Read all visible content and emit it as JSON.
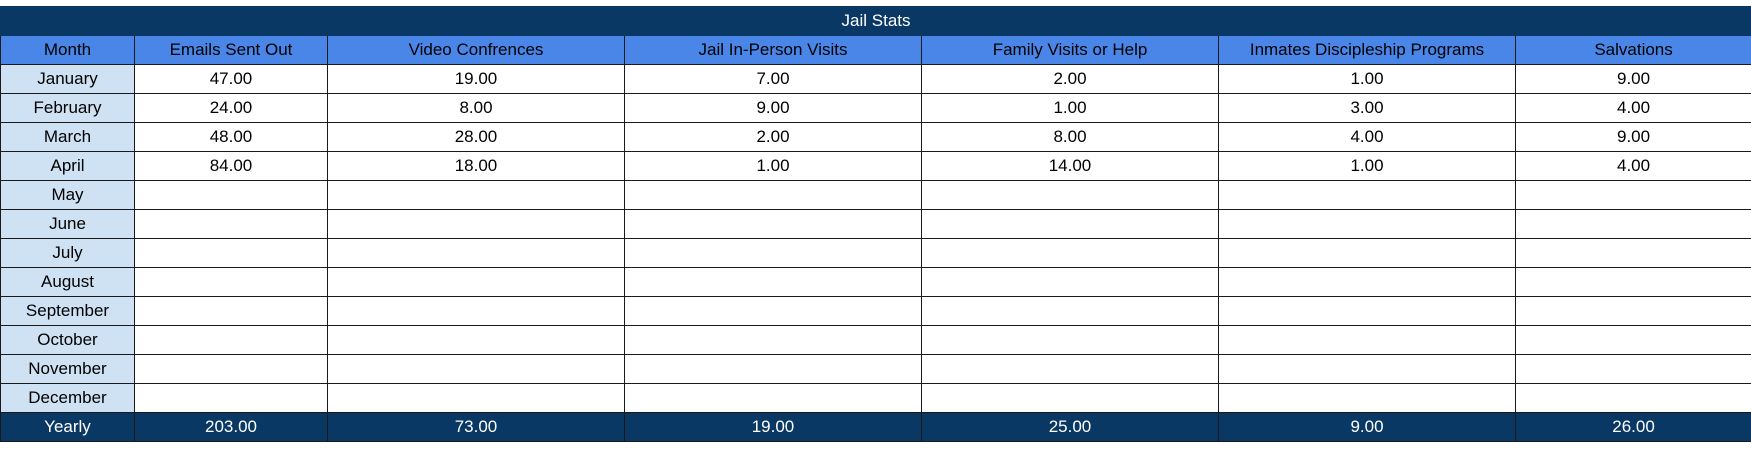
{
  "sheet": {
    "title": "Jail Stats",
    "columns": [
      "Month",
      "Emails Sent Out",
      "Video Confrences",
      "Jail In-Person Visits",
      "Family Visits or Help",
      "Inmates Discipleship Programs",
      "Salvations"
    ],
    "rows": [
      [
        "January",
        "47.00",
        "19.00",
        "7.00",
        "2.00",
        "1.00",
        "9.00"
      ],
      [
        "February",
        "24.00",
        "8.00",
        "9.00",
        "1.00",
        "3.00",
        "4.00"
      ],
      [
        "March",
        "48.00",
        "28.00",
        "2.00",
        "8.00",
        "4.00",
        "9.00"
      ],
      [
        "April",
        "84.00",
        "18.00",
        "1.00",
        "14.00",
        "1.00",
        "4.00"
      ],
      [
        "May",
        "",
        "",
        "",
        "",
        "",
        ""
      ],
      [
        "June",
        "",
        "",
        "",
        "",
        "",
        ""
      ],
      [
        "July",
        "",
        "",
        "",
        "",
        "",
        ""
      ],
      [
        "August",
        "",
        "",
        "",
        "",
        "",
        ""
      ],
      [
        "September",
        "",
        "",
        "",
        "",
        "",
        ""
      ],
      [
        "October",
        "",
        "",
        "",
        "",
        "",
        ""
      ],
      [
        "November",
        "",
        "",
        "",
        "",
        "",
        ""
      ],
      [
        "December",
        "",
        "",
        "",
        "",
        "",
        ""
      ]
    ],
    "yearly": [
      "Yearly",
      "203.00",
      "73.00",
      "19.00",
      "25.00",
      "9.00",
      "26.00"
    ],
    "colors": {
      "title_bg": "#0a3864",
      "header_bg": "#4a86e8",
      "month_bg": "#cfe2f3",
      "yearly_bg": "#0a3864"
    }
  }
}
